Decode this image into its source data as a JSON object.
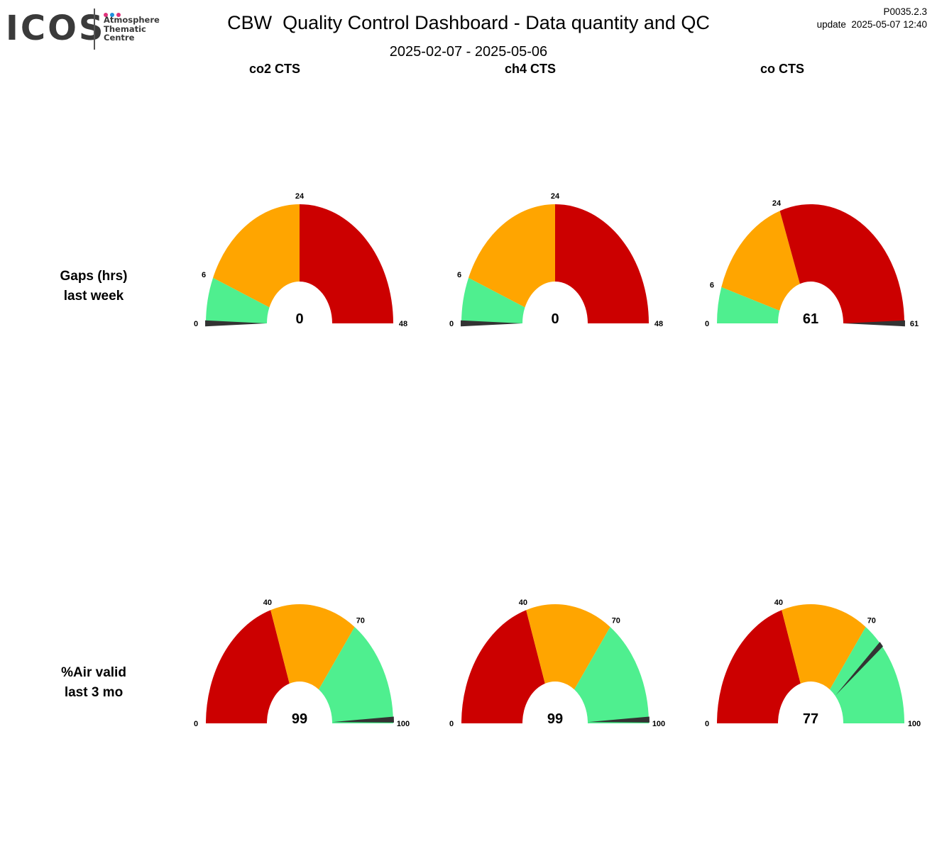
{
  "logo": {
    "wordmark": "ICOS",
    "lines": [
      "Atmosphere",
      "Thematic",
      "Centre"
    ],
    "dot_colors": [
      "#e0317a",
      "#1f8fdc",
      "#e0317a"
    ]
  },
  "header": {
    "title": "CBW  Quality Control Dashboard - Data quantity and QC",
    "date_range": "2025-02-07 - 2025-05-06",
    "version": "P0035.2.3",
    "update": "update  2025-05-07 12:40"
  },
  "columns": [
    "co2 CTS",
    "ch4 CTS",
    "co CTS"
  ],
  "rows": [
    {
      "label_line1": "Gaps (hrs)",
      "label_line2": "last week"
    },
    {
      "label_line1": "%Air valid",
      "label_line2": "last 3 mo"
    }
  ],
  "colors": {
    "red": "#cc0000",
    "orange": "#ffa500",
    "green": "#4fef8f",
    "needle": "#333333"
  },
  "chart_data": [
    {
      "type": "gauge",
      "row": 0,
      "col": 0,
      "min": 0,
      "max": 48,
      "value": 0,
      "value_label": "0",
      "bands": [
        {
          "from": 0,
          "to": 6,
          "color": "green"
        },
        {
          "from": 6,
          "to": 24,
          "color": "orange"
        },
        {
          "from": 24,
          "to": 48,
          "color": "red"
        }
      ],
      "tick_values": [
        0,
        6,
        24,
        48
      ],
      "tick_labels": [
        "0",
        "6",
        "24",
        "48"
      ]
    },
    {
      "type": "gauge",
      "row": 0,
      "col": 1,
      "min": 0,
      "max": 48,
      "value": 0,
      "value_label": "0",
      "bands": [
        {
          "from": 0,
          "to": 6,
          "color": "green"
        },
        {
          "from": 6,
          "to": 24,
          "color": "orange"
        },
        {
          "from": 24,
          "to": 48,
          "color": "red"
        }
      ],
      "tick_values": [
        0,
        6,
        24,
        48
      ],
      "tick_labels": [
        "0",
        "6",
        "24",
        "48"
      ]
    },
    {
      "type": "gauge",
      "row": 0,
      "col": 2,
      "min": 0,
      "max": 61,
      "value": 61,
      "value_label": "61",
      "bands": [
        {
          "from": 0,
          "to": 6,
          "color": "green"
        },
        {
          "from": 6,
          "to": 24,
          "color": "orange"
        },
        {
          "from": 24,
          "to": 61,
          "color": "red"
        }
      ],
      "tick_values": [
        0,
        6,
        24,
        61
      ],
      "tick_labels": [
        "0",
        "6",
        "24",
        "61"
      ]
    },
    {
      "type": "gauge",
      "row": 1,
      "col": 0,
      "min": 0,
      "max": 100,
      "value": 99,
      "value_label": "99",
      "bands": [
        {
          "from": 0,
          "to": 40,
          "color": "red"
        },
        {
          "from": 40,
          "to": 70,
          "color": "orange"
        },
        {
          "from": 70,
          "to": 100,
          "color": "green"
        }
      ],
      "tick_values": [
        0,
        40,
        70,
        100
      ],
      "tick_labels": [
        "0",
        "40",
        "70",
        "100"
      ]
    },
    {
      "type": "gauge",
      "row": 1,
      "col": 1,
      "min": 0,
      "max": 100,
      "value": 99,
      "value_label": "99",
      "bands": [
        {
          "from": 0,
          "to": 40,
          "color": "red"
        },
        {
          "from": 40,
          "to": 70,
          "color": "orange"
        },
        {
          "from": 70,
          "to": 100,
          "color": "green"
        }
      ],
      "tick_values": [
        0,
        40,
        70,
        100
      ],
      "tick_labels": [
        "0",
        "40",
        "70",
        "100"
      ]
    },
    {
      "type": "gauge",
      "row": 1,
      "col": 2,
      "min": 0,
      "max": 100,
      "value": 77,
      "value_label": "77",
      "bands": [
        {
          "from": 0,
          "to": 40,
          "color": "red"
        },
        {
          "from": 40,
          "to": 70,
          "color": "orange"
        },
        {
          "from": 70,
          "to": 100,
          "color": "green"
        }
      ],
      "tick_values": [
        0,
        40,
        70,
        100
      ],
      "tick_labels": [
        "0",
        "40",
        "70",
        "100"
      ]
    }
  ]
}
